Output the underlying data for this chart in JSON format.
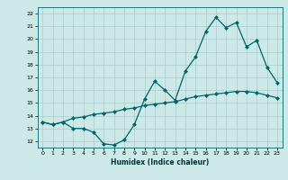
{
  "xlabel": "Humidex (Indice chaleur)",
  "bg_color": "#cce8e8",
  "grid_color": "#aacccc",
  "line_color": "#006666",
  "xlim": [
    -0.5,
    23.5
  ],
  "ylim": [
    11.5,
    22.5
  ],
  "xticks": [
    0,
    1,
    2,
    3,
    4,
    5,
    6,
    7,
    8,
    9,
    10,
    11,
    12,
    13,
    14,
    15,
    16,
    17,
    18,
    19,
    20,
    21,
    22,
    23
  ],
  "yticks": [
    12,
    13,
    14,
    15,
    16,
    17,
    18,
    19,
    20,
    21,
    22
  ],
  "line1_x": [
    0,
    1,
    2,
    3,
    4,
    5,
    6,
    7,
    8,
    9,
    10,
    11,
    12,
    13,
    14,
    15,
    16,
    17,
    18,
    19,
    20,
    21,
    22,
    23
  ],
  "line1_y": [
    13.5,
    13.3,
    13.5,
    13.0,
    13.0,
    12.7,
    11.8,
    11.7,
    12.1,
    13.3,
    15.3,
    16.7,
    16.0,
    15.2,
    17.5,
    18.6,
    20.6,
    21.7,
    20.9,
    21.3,
    19.4,
    19.9,
    17.8,
    16.6
  ],
  "line2_x": [
    0,
    1,
    2,
    3,
    4,
    5,
    6,
    7,
    8,
    9,
    10,
    11,
    12,
    13,
    14,
    15,
    16,
    17,
    18,
    19,
    20,
    21,
    22,
    23
  ],
  "line2_y": [
    13.5,
    13.3,
    13.5,
    13.8,
    13.9,
    14.1,
    14.2,
    14.3,
    14.5,
    14.6,
    14.8,
    14.9,
    15.0,
    15.1,
    15.3,
    15.5,
    15.6,
    15.7,
    15.8,
    15.9,
    15.9,
    15.8,
    15.6,
    15.4
  ]
}
